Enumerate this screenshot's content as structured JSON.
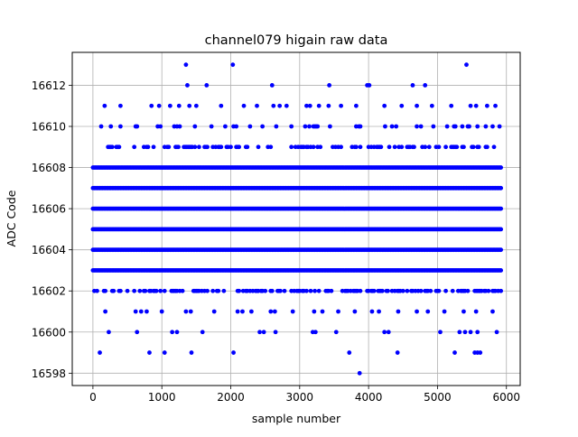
{
  "chart_data": {
    "type": "scatter",
    "title": "channel079 higain raw data",
    "xlabel": "sample number",
    "ylabel": "ADC Code",
    "xlim": [
      -300,
      6200
    ],
    "ylim": [
      16597.4,
      16613.6
    ],
    "xticks": [
      0,
      1000,
      2000,
      3000,
      4000,
      5000,
      6000
    ],
    "yticks": [
      16598,
      16600,
      16602,
      16604,
      16606,
      16608,
      16610,
      16612
    ],
    "grid": true,
    "marker_color": "#0000ff",
    "n_samples": 5920,
    "levels": [
      {
        "y": 16610,
        "density": 0.2
      },
      {
        "y": 16609,
        "density": 0.35
      },
      {
        "y": 16608,
        "density": 1.0
      },
      {
        "y": 16607,
        "density": 1.0
      },
      {
        "y": 16606,
        "density": 1.0
      },
      {
        "y": 16605,
        "density": 1.0
      },
      {
        "y": 16604,
        "density": 1.0
      },
      {
        "y": 16603,
        "density": 1.0
      },
      {
        "y": 16602,
        "density": 0.45
      }
    ],
    "sparse_points": [
      {
        "x": 170,
        "y": 16611
      },
      {
        "x": 400,
        "y": 16611
      },
      {
        "x": 850,
        "y": 16611
      },
      {
        "x": 960,
        "y": 16611
      },
      {
        "x": 1120,
        "y": 16611
      },
      {
        "x": 1250,
        "y": 16611
      },
      {
        "x": 1400,
        "y": 16611
      },
      {
        "x": 1500,
        "y": 16611
      },
      {
        "x": 1860,
        "y": 16611
      },
      {
        "x": 2190,
        "y": 16611
      },
      {
        "x": 2380,
        "y": 16611
      },
      {
        "x": 2620,
        "y": 16611
      },
      {
        "x": 2710,
        "y": 16611
      },
      {
        "x": 2810,
        "y": 16611
      },
      {
        "x": 3100,
        "y": 16611
      },
      {
        "x": 3150,
        "y": 16611
      },
      {
        "x": 3280,
        "y": 16611
      },
      {
        "x": 3420,
        "y": 16611
      },
      {
        "x": 3600,
        "y": 16611
      },
      {
        "x": 3820,
        "y": 16611
      },
      {
        "x": 4230,
        "y": 16611
      },
      {
        "x": 4480,
        "y": 16611
      },
      {
        "x": 4700,
        "y": 16611
      },
      {
        "x": 4920,
        "y": 16611
      },
      {
        "x": 5200,
        "y": 16611
      },
      {
        "x": 5480,
        "y": 16611
      },
      {
        "x": 5560,
        "y": 16611
      },
      {
        "x": 5720,
        "y": 16611
      },
      {
        "x": 5840,
        "y": 16611
      },
      {
        "x": 1370,
        "y": 16612
      },
      {
        "x": 1650,
        "y": 16612
      },
      {
        "x": 2600,
        "y": 16612
      },
      {
        "x": 3430,
        "y": 16612
      },
      {
        "x": 3980,
        "y": 16612
      },
      {
        "x": 4010,
        "y": 16612
      },
      {
        "x": 4640,
        "y": 16612
      },
      {
        "x": 4820,
        "y": 16612
      },
      {
        "x": 1350,
        "y": 16613
      },
      {
        "x": 2030,
        "y": 16613
      },
      {
        "x": 5420,
        "y": 16613
      },
      {
        "x": 180,
        "y": 16601
      },
      {
        "x": 620,
        "y": 16601
      },
      {
        "x": 700,
        "y": 16601
      },
      {
        "x": 780,
        "y": 16601
      },
      {
        "x": 1000,
        "y": 16601
      },
      {
        "x": 1350,
        "y": 16601
      },
      {
        "x": 1420,
        "y": 16601
      },
      {
        "x": 1760,
        "y": 16601
      },
      {
        "x": 2100,
        "y": 16601
      },
      {
        "x": 2170,
        "y": 16601
      },
      {
        "x": 2300,
        "y": 16601
      },
      {
        "x": 2580,
        "y": 16601
      },
      {
        "x": 2640,
        "y": 16601
      },
      {
        "x": 2900,
        "y": 16601
      },
      {
        "x": 3210,
        "y": 16601
      },
      {
        "x": 3330,
        "y": 16601
      },
      {
        "x": 3560,
        "y": 16601
      },
      {
        "x": 3800,
        "y": 16601
      },
      {
        "x": 4050,
        "y": 16601
      },
      {
        "x": 4150,
        "y": 16601
      },
      {
        "x": 4430,
        "y": 16601
      },
      {
        "x": 4700,
        "y": 16601
      },
      {
        "x": 4860,
        "y": 16601
      },
      {
        "x": 5100,
        "y": 16601
      },
      {
        "x": 5380,
        "y": 16601
      },
      {
        "x": 5560,
        "y": 16601
      },
      {
        "x": 5800,
        "y": 16601
      },
      {
        "x": 230,
        "y": 16600
      },
      {
        "x": 640,
        "y": 16600
      },
      {
        "x": 1150,
        "y": 16600
      },
      {
        "x": 1220,
        "y": 16600
      },
      {
        "x": 1590,
        "y": 16600
      },
      {
        "x": 2420,
        "y": 16600
      },
      {
        "x": 2480,
        "y": 16600
      },
      {
        "x": 2650,
        "y": 16600
      },
      {
        "x": 3190,
        "y": 16600
      },
      {
        "x": 3230,
        "y": 16600
      },
      {
        "x": 3530,
        "y": 16600
      },
      {
        "x": 4230,
        "y": 16600
      },
      {
        "x": 4290,
        "y": 16600
      },
      {
        "x": 5040,
        "y": 16600
      },
      {
        "x": 5320,
        "y": 16600
      },
      {
        "x": 5400,
        "y": 16600
      },
      {
        "x": 5480,
        "y": 16600
      },
      {
        "x": 5580,
        "y": 16600
      },
      {
        "x": 5860,
        "y": 16600
      },
      {
        "x": 100,
        "y": 16599
      },
      {
        "x": 820,
        "y": 16599
      },
      {
        "x": 1040,
        "y": 16599
      },
      {
        "x": 1430,
        "y": 16599
      },
      {
        "x": 2040,
        "y": 16599
      },
      {
        "x": 3720,
        "y": 16599
      },
      {
        "x": 4420,
        "y": 16599
      },
      {
        "x": 5250,
        "y": 16599
      },
      {
        "x": 5540,
        "y": 16599
      },
      {
        "x": 5580,
        "y": 16599
      },
      {
        "x": 5620,
        "y": 16599
      },
      {
        "x": 3870,
        "y": 16598
      }
    ]
  }
}
